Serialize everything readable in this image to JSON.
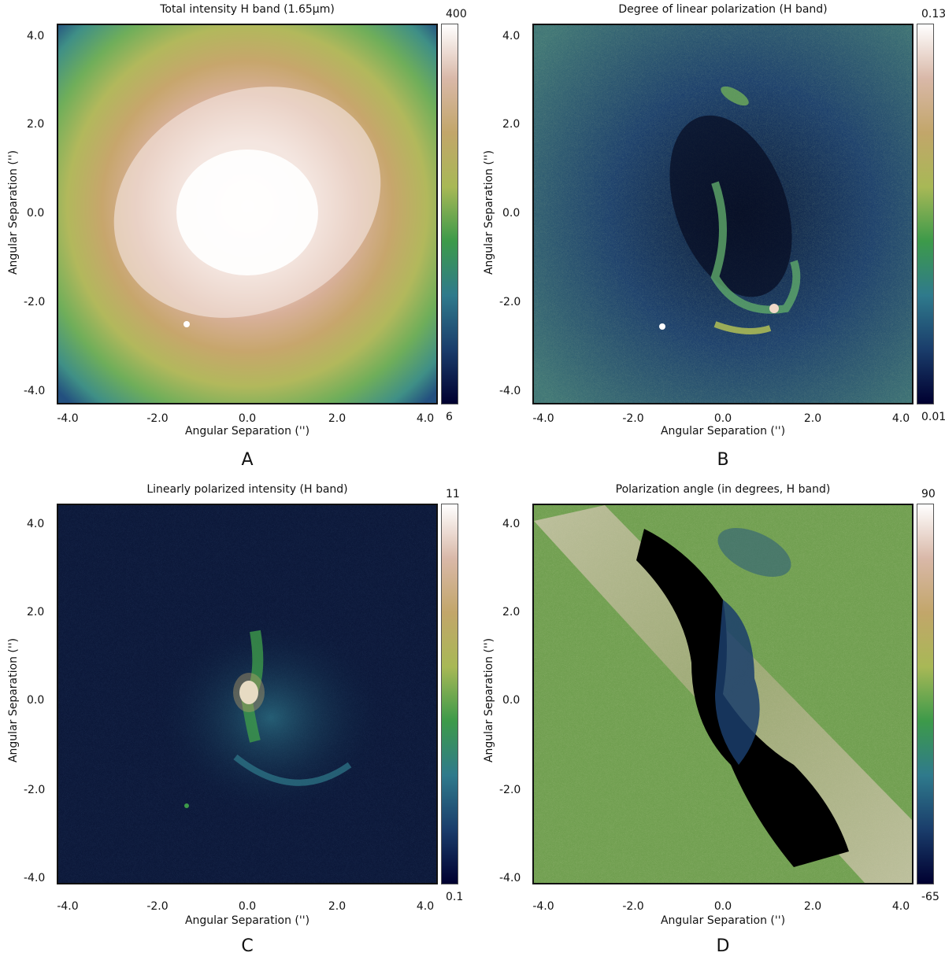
{
  "panels": [
    {
      "title": "Total intensity H band (1.65µm)",
      "letter": "A",
      "cbar_max": "400",
      "cbar_min": "6",
      "xlabel": "Angular Separation ('')",
      "ylabel": "Angular Separation ('')",
      "yticks": [
        "4.0",
        "2.0",
        "0.0",
        "-2.0",
        "-4.0"
      ],
      "xticks": [
        "-4.0",
        "-2.0",
        "0.0",
        "2.0",
        "4.0"
      ]
    },
    {
      "title": "Degree of linear polarization (H band)",
      "letter": "B",
      "cbar_max": "0.13",
      "cbar_min": "0.01",
      "xlabel": "Angular Separation ('')",
      "ylabel": "Angular Separation ('')",
      "yticks": [
        "4.0",
        "2.0",
        "0.0",
        "-2.0",
        "-4.0"
      ],
      "xticks": [
        "-4.0",
        "-2.0",
        "0.0",
        "2.0",
        "4.0"
      ]
    },
    {
      "title": "Linearly polarized intensity (H band)",
      "letter": "C",
      "cbar_max": "11",
      "cbar_min": "0.1",
      "xlabel": "Angular Separation ('')",
      "ylabel": "Angular Separation ('')",
      "yticks": [
        "4.0",
        "2.0",
        "0.0",
        "-2.0",
        "-4.0"
      ],
      "xticks": [
        "-4.0",
        "-2.0",
        "0.0",
        "2.0",
        "4.0"
      ]
    },
    {
      "title": "Polarization angle (in degrees, H band)",
      "letter": "D",
      "cbar_max": "90",
      "cbar_min": "-65",
      "xlabel": "Angular Separation ('')",
      "ylabel": "Angular Separation ('')",
      "yticks": [
        "4.0",
        "2.0",
        "0.0",
        "-2.0",
        "-4.0"
      ],
      "xticks": [
        "-4.0",
        "-2.0",
        "0.0",
        "2.0",
        "4.0"
      ]
    }
  ],
  "colormap": [
    "#000030",
    "#1a3d6b",
    "#2f7a8c",
    "#3d9a4a",
    "#a8b856",
    "#c2a66a",
    "#d9b8a8",
    "#ffffff"
  ]
}
